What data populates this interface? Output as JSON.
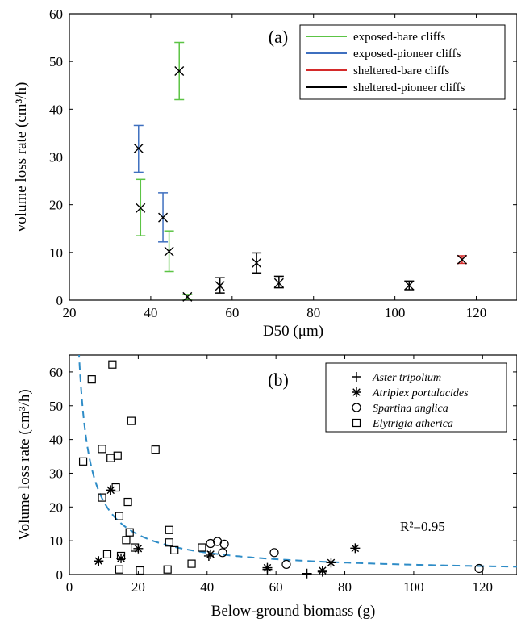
{
  "chart_data": [
    {
      "type": "scatter",
      "panel_tag": "(a)",
      "xlabel": "D50 (μm)",
      "ylabel": "volume loss rate (cm³/h)",
      "xlim": [
        20,
        130
      ],
      "ylim": [
        0,
        60
      ],
      "xticks": [
        20,
        40,
        60,
        80,
        100,
        120
      ],
      "yticks": [
        0,
        10,
        20,
        30,
        40,
        50,
        60
      ],
      "legend_position": "top-right",
      "grid": false,
      "series": [
        {
          "name": "exposed-bare cliffs",
          "color": "#5cc445",
          "points": [
            {
              "x": 47,
              "y": 48,
              "lo": 42,
              "hi": 54
            },
            {
              "x": 37.5,
              "y": 19.3,
              "lo": 13.5,
              "hi": 25.3
            },
            {
              "x": 44.5,
              "y": 10.2,
              "lo": 6,
              "hi": 14.5
            },
            {
              "x": 49,
              "y": 0.7,
              "lo": 0.2,
              "hi": 1.2
            }
          ]
        },
        {
          "name": "exposed-pioneer cliffs",
          "color": "#3e6fbf",
          "points": [
            {
              "x": 37,
              "y": 31.8,
              "lo": 26.8,
              "hi": 36.6
            },
            {
              "x": 43,
              "y": 17.3,
              "lo": 12.2,
              "hi": 22.5
            }
          ]
        },
        {
          "name": "sheltered-bare cliffs",
          "color": "#d42a2a",
          "points": [
            {
              "x": 116.5,
              "y": 8.5,
              "lo": 7.7,
              "hi": 9.3
            }
          ]
        },
        {
          "name": "sheltered-pioneer cliffs",
          "color": "#000000",
          "points": [
            {
              "x": 57,
              "y": 3,
              "lo": 1.5,
              "hi": 4.7
            },
            {
              "x": 66,
              "y": 7.8,
              "lo": 5.7,
              "hi": 9.9
            },
            {
              "x": 71.5,
              "y": 3.6,
              "lo": 2.6,
              "hi": 5
            },
            {
              "x": 103.5,
              "y": 3.1,
              "lo": 2.2,
              "hi": 4
            }
          ]
        }
      ]
    },
    {
      "type": "scatter",
      "panel_tag": "(b)",
      "xlabel": "Below-ground biomass (g)",
      "ylabel": "Volume loss rate (cm³/h)",
      "xlim": [
        0,
        130
      ],
      "ylim": [
        0,
        65
      ],
      "xticks": [
        0,
        20,
        40,
        60,
        80,
        100,
        120
      ],
      "yticks": [
        0,
        10,
        20,
        30,
        40,
        50,
        60
      ],
      "legend_position": "top-right",
      "grid": false,
      "annotation": "R²=0.95",
      "fit": {
        "color": "#2e8cc7",
        "style": "dashed",
        "a": 160,
        "b": 0.87
      },
      "series": [
        {
          "name": "Aster tripolium",
          "marker": "plus",
          "points": [
            [
              40.5,
              5.5
            ],
            [
              57.5,
              1.5
            ],
            [
              69,
              0.3
            ],
            [
              73.5,
              0.8
            ]
          ]
        },
        {
          "name": "Atriplex portulacides",
          "marker": "asterisk",
          "points": [
            [
              8.5,
              4
            ],
            [
              12,
              25
            ],
            [
              15,
              4.8
            ],
            [
              20,
              7.7
            ],
            [
              41,
              6
            ],
            [
              57.5,
              2
            ],
            [
              73.5,
              1.2
            ],
            [
              76,
              3.5
            ],
            [
              83,
              7.8
            ]
          ]
        },
        {
          "name": "Spartina anglica",
          "marker": "circle",
          "points": [
            [
              41,
              9.2
            ],
            [
              43,
              9.8
            ],
            [
              44.5,
              6.5
            ],
            [
              45,
              9
            ],
            [
              59.5,
              6.5
            ],
            [
              63,
              3
            ],
            [
              119,
              1.8
            ]
          ]
        },
        {
          "name": "Elytrigia atherica",
          "marker": "square",
          "points": [
            [
              4,
              33.5
            ],
            [
              6.5,
              57.8
            ],
            [
              9.5,
              22.8
            ],
            [
              9.5,
              37.2
            ],
            [
              11,
              6
            ],
            [
              12,
              34.5
            ],
            [
              12.5,
              62.2
            ],
            [
              13.5,
              25.8
            ],
            [
              14,
              35.2
            ],
            [
              14.5,
              17.3
            ],
            [
              14.5,
              1.5
            ],
            [
              15,
              5.5
            ],
            [
              16.5,
              10.2
            ],
            [
              17,
              21.5
            ],
            [
              17.5,
              12.5
            ],
            [
              18,
              45.5
            ],
            [
              19,
              8
            ],
            [
              20.5,
              1.2
            ],
            [
              25,
              37
            ],
            [
              28.5,
              1.5
            ],
            [
              29,
              13.2
            ],
            [
              29,
              9.5
            ],
            [
              30.5,
              7.2
            ],
            [
              35.5,
              3.2
            ],
            [
              38.5,
              8
            ]
          ]
        }
      ]
    }
  ]
}
